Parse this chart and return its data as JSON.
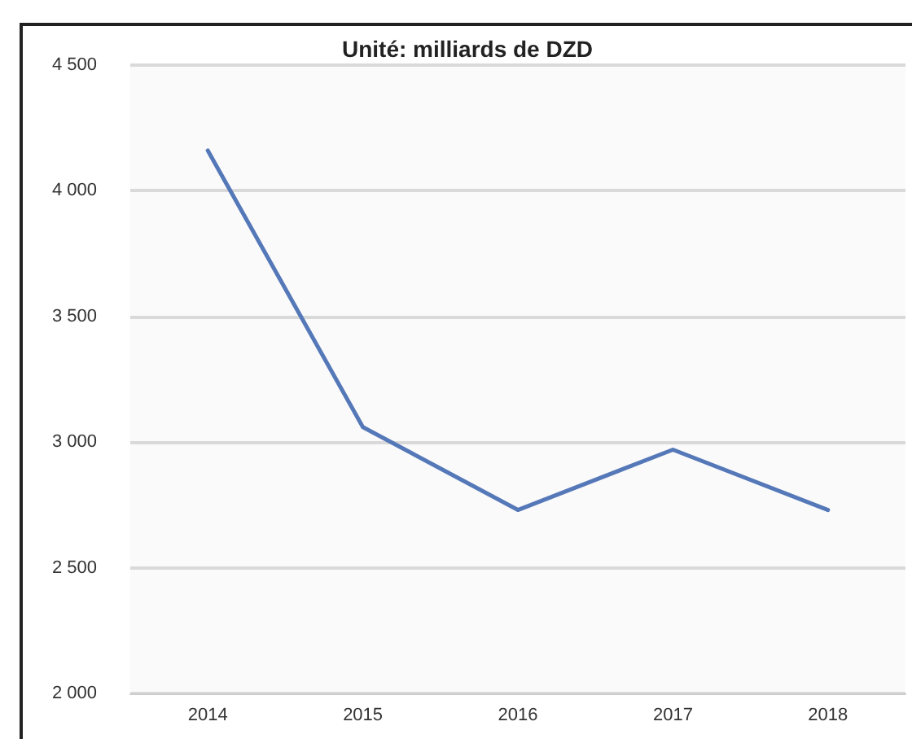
{
  "chart_data": {
    "type": "line",
    "title": "Unité: milliards de DZD",
    "categories": [
      "2014",
      "2015",
      "2016",
      "2017",
      "2018"
    ],
    "series": [
      {
        "color": "#5578b8",
        "values": [
          4160,
          3060,
          2730,
          2970,
          2730
        ]
      }
    ],
    "ylim": [
      2000,
      4500
    ],
    "yticks": [
      {
        "value": 2000,
        "label": "2 000"
      },
      {
        "value": 2500,
        "label": "2 500"
      },
      {
        "value": 3000,
        "label": "3 000"
      },
      {
        "value": 3500,
        "label": "3 500"
      },
      {
        "value": 4000,
        "label": "4 000"
      },
      {
        "value": 4500,
        "label": "4 500"
      }
    ],
    "grid": "y",
    "marker": "none",
    "line_style": "solid"
  }
}
